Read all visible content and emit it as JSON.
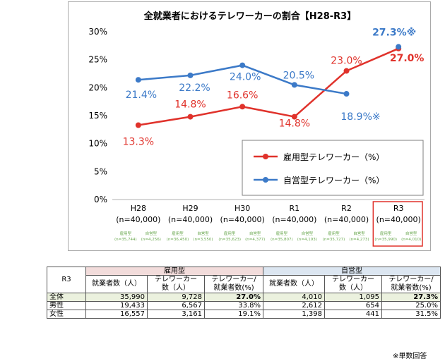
{
  "chart_data": {
    "type": "line",
    "title": "全就業者におけるテレワーカーの割合【H28-R3】",
    "categories": [
      "H28",
      "H29",
      "H30",
      "R1",
      "R2",
      "R3"
    ],
    "category_samples": [
      "(n=40,000)",
      "(n=40,000)",
      "(n=40,000)",
      "(n=40,000)",
      "(n=40,000)",
      "(n=40,000)"
    ],
    "sub_labels": [
      {
        "emp": "雇用型",
        "self": "自営型",
        "emp_n": "(n=35,744)",
        "self_n": "(n=4,256)"
      },
      {
        "emp": "雇用型",
        "self": "自営型",
        "emp_n": "(n=36,450)",
        "self_n": "(n=3,550)"
      },
      {
        "emp": "雇用型",
        "self": "自営型",
        "emp_n": "(n=35,623)",
        "self_n": "(n=4,377)"
      },
      {
        "emp": "雇用型",
        "self": "自営型",
        "emp_n": "(n=35,807)",
        "self_n": "(n=4,193)"
      },
      {
        "emp": "雇用型",
        "self": "自営型",
        "emp_n": "(n=35,727)",
        "self_n": "(n=4,273)"
      },
      {
        "emp": "雇用型",
        "self": "自営型",
        "emp_n": "(n=35,990)",
        "self_n": "(n=4,010)"
      }
    ],
    "y_ticks": [
      "0%",
      "5%",
      "10%",
      "15%",
      "20%",
      "25%",
      "30%"
    ],
    "ylim": [
      0,
      30
    ],
    "grid": false,
    "legend_position": "bottom-right",
    "highlight_category": "R3",
    "series": [
      {
        "name": "雇用型テレワーカー（%）",
        "color": "#e0322b",
        "values": [
          13.3,
          14.8,
          16.6,
          14.8,
          23.0,
          27.0
        ],
        "labels": [
          "13.3%",
          "14.8%",
          "16.6%",
          "14.8%",
          "23.0%",
          "27.0%"
        ]
      },
      {
        "name": "自営型テレワーカー（%）",
        "color": "#3c7ac8",
        "values": [
          21.4,
          22.2,
          24.0,
          20.5,
          18.9,
          27.3
        ],
        "labels": [
          "21.4%",
          "22.2%",
          "24.0%",
          "20.5%",
          "18.9%※",
          "27.3%※"
        ]
      }
    ]
  },
  "table": {
    "corner": "R3",
    "group_employed": "雇用型",
    "group_self": "自営型",
    "col_workers": "就業者数（人）",
    "col_teleworkers_1": "テレワーカー",
    "col_teleworkers_2": "数（人）",
    "col_ratio_1": "テレワーカー/",
    "col_ratio_2": "就業者数(%)",
    "rows": [
      {
        "label": "全体",
        "e_workers": "35,990",
        "e_tele": "9,728",
        "e_ratio": "27.0%",
        "s_workers": "4,010",
        "s_tele": "1,095",
        "s_ratio": "27.3%"
      },
      {
        "label": "男性",
        "e_workers": "19,433",
        "e_tele": "6,567",
        "e_ratio": "33.8%",
        "s_workers": "2,612",
        "s_tele": "654",
        "s_ratio": "25.0%"
      },
      {
        "label": "女性",
        "e_workers": "16,557",
        "e_tele": "3,161",
        "e_ratio": "19.1%",
        "s_workers": "1,398",
        "s_tele": "441",
        "s_ratio": "31.5%"
      }
    ]
  },
  "footnote": "※単数回答"
}
